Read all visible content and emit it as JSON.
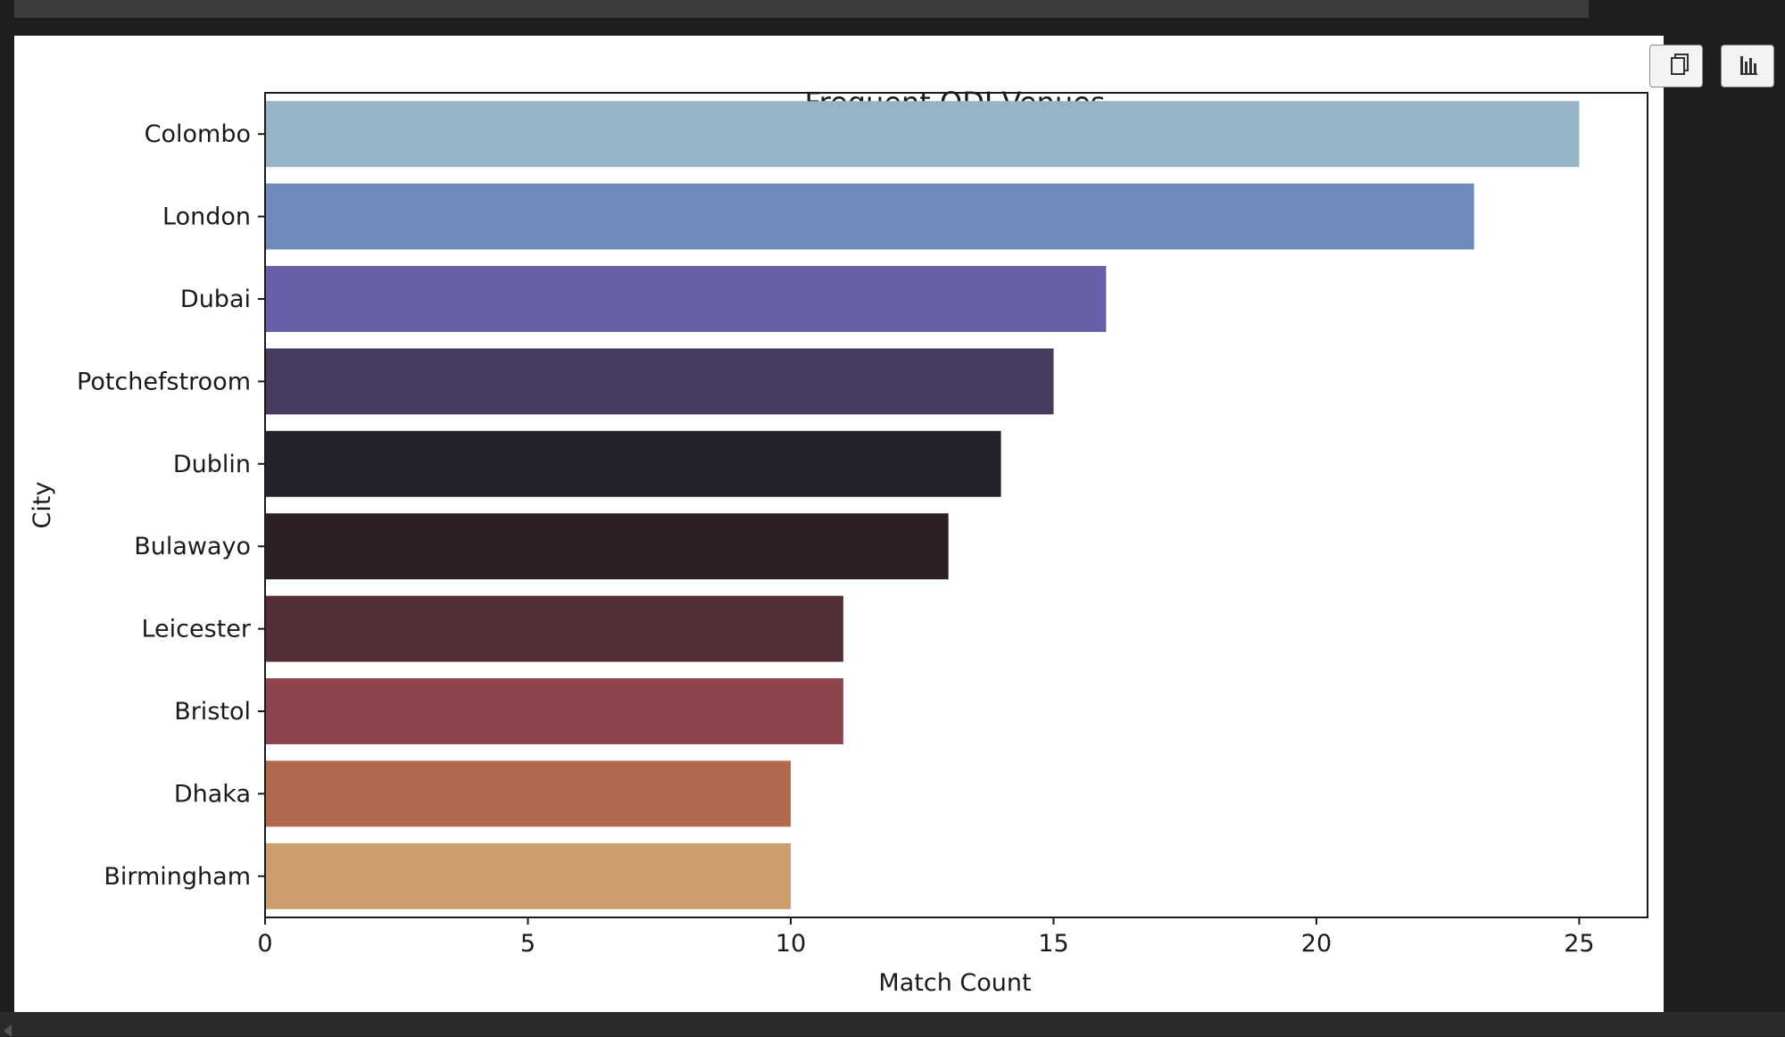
{
  "chart_data": {
    "type": "bar",
    "orientation": "horizontal",
    "title": "Frequent ODI Venues",
    "xlabel": "Match Count",
    "ylabel": "City",
    "categories": [
      "Colombo",
      "London",
      "Dubai",
      "Potchefstroom",
      "Dublin",
      "Bulawayo",
      "Leicester",
      "Bristol",
      "Dhaka",
      "Birmingham"
    ],
    "values": [
      25,
      23,
      16,
      15,
      14,
      13,
      11,
      11,
      10,
      10
    ],
    "colors": [
      "#97b3c6",
      "#6f8abb",
      "#6760a9",
      "#463a5e",
      "#24232b",
      "#2c2022",
      "#552f37",
      "#8d444c",
      "#b0694d",
      "#cc9d6d"
    ],
    "xlim": [
      0,
      26.3
    ],
    "xticks": [
      0,
      5,
      10,
      15,
      20,
      25
    ],
    "grid": false,
    "legend": "none"
  },
  "toolbar": {
    "copy_icon": "copy-icon",
    "chart_icon": "bar-chart-icon"
  }
}
